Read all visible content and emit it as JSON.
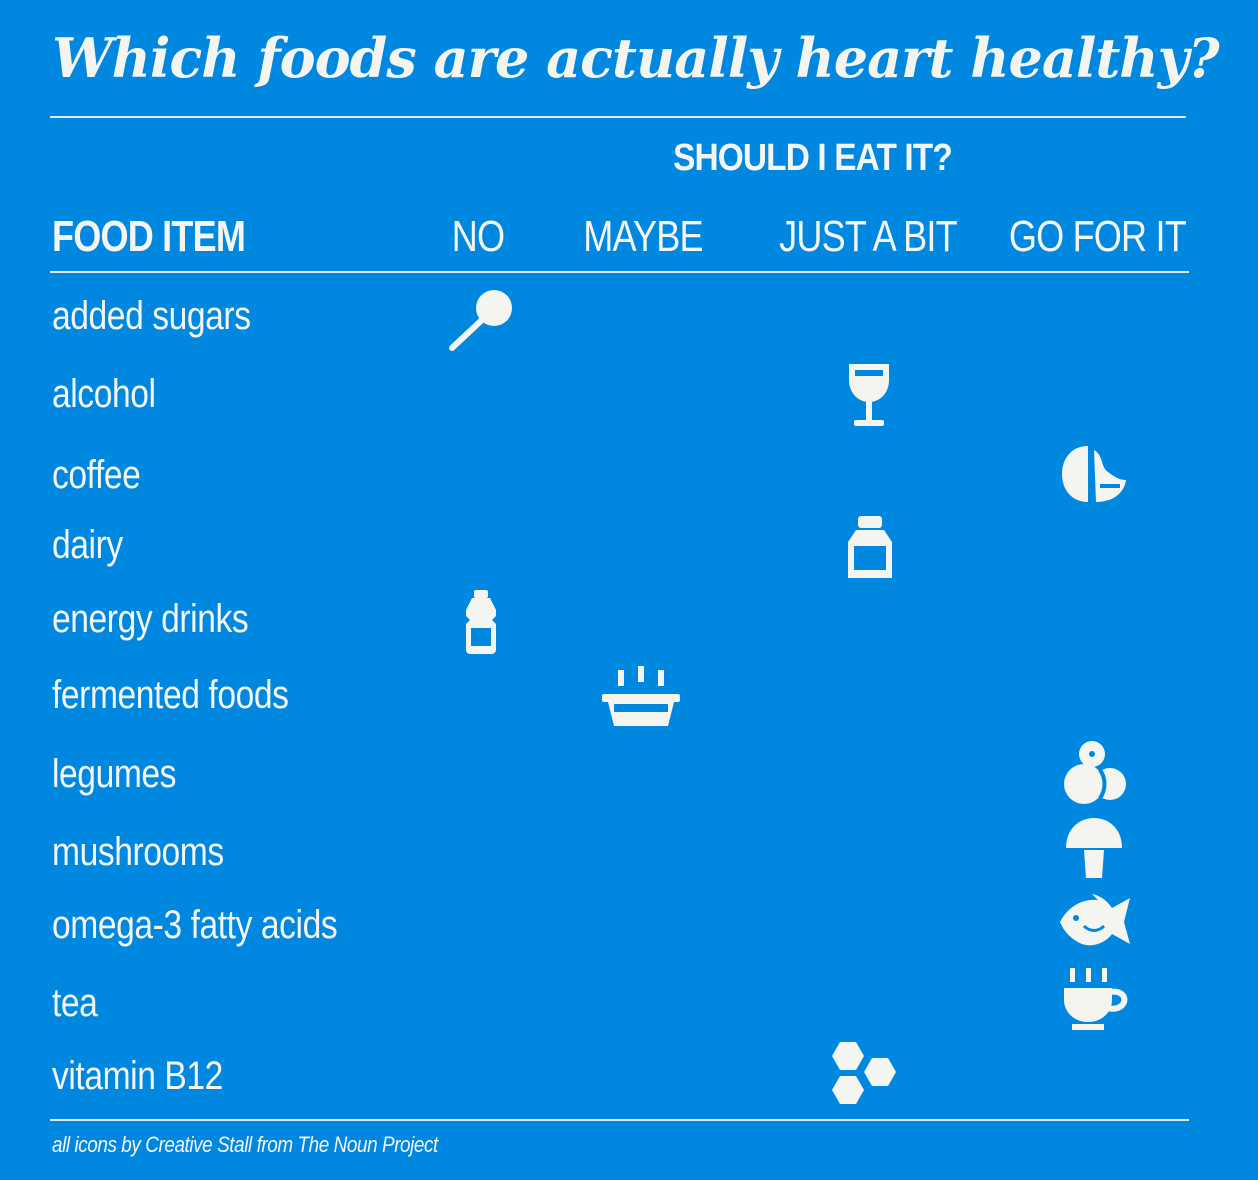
{
  "title": "Which foods are actually heart healthy?",
  "header": {
    "super_label": "SHOULD I EAT IT?",
    "food_col": "FOOD ITEM",
    "columns": [
      "NO",
      "MAYBE",
      "JUST A BIT",
      "GO FOR IT"
    ]
  },
  "rows": [
    {
      "label": "added sugars",
      "rating": "NO",
      "icon": "lollipop-icon"
    },
    {
      "label": "alcohol",
      "rating": "JUST A BIT",
      "icon": "wine-glass-icon"
    },
    {
      "label": "coffee",
      "rating": "GO FOR IT",
      "icon": "coffee-bean-icon"
    },
    {
      "label": "dairy",
      "rating": "JUST A BIT",
      "icon": "milk-bottle-icon"
    },
    {
      "label": "energy drinks",
      "rating": "NO",
      "icon": "drink-bottle-icon"
    },
    {
      "label": "fermented foods",
      "rating": "MAYBE",
      "icon": "steaming-bowl-icon"
    },
    {
      "label": "legumes",
      "rating": "GO FOR IT",
      "icon": "beans-icon"
    },
    {
      "label": "mushrooms",
      "rating": "GO FOR IT",
      "icon": "mushroom-icon"
    },
    {
      "label": "omega-3 fatty acids",
      "rating": "GO FOR IT",
      "icon": "fish-icon"
    },
    {
      "label": "tea",
      "rating": "GO FOR IT",
      "icon": "tea-cup-icon"
    },
    {
      "label": "vitamin B12",
      "rating": "JUST A BIT",
      "icon": "hexagon-cluster-icon"
    }
  ],
  "credit": "all icons by Creative Stall from The Noun Project",
  "colors": {
    "background": "#0088e0",
    "foreground": "#f4f4f1"
  }
}
